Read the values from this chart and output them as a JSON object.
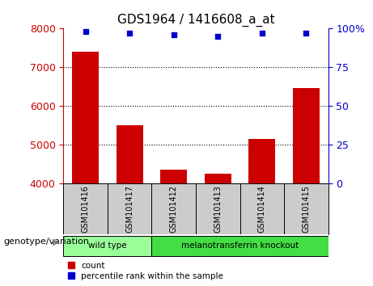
{
  "title": "GDS1964 / 1416608_a_at",
  "samples": [
    "GSM101416",
    "GSM101417",
    "GSM101412",
    "GSM101413",
    "GSM101414",
    "GSM101415"
  ],
  "bar_values": [
    7400,
    5500,
    4350,
    4250,
    5150,
    6450
  ],
  "percentile_values": [
    98,
    97,
    96,
    95,
    97,
    97
  ],
  "bar_color": "#cc0000",
  "percentile_color": "#0000cc",
  "ylim_left": [
    4000,
    8000
  ],
  "ylim_right": [
    0,
    100
  ],
  "yticks_left": [
    4000,
    5000,
    6000,
    7000,
    8000
  ],
  "yticks_right": [
    0,
    25,
    50,
    75,
    100
  ],
  "ytick_labels_right": [
    "0",
    "25",
    "50",
    "75",
    "100%"
  ],
  "grid_values": [
    5000,
    6000,
    7000
  ],
  "groups": [
    {
      "label": "wild type",
      "indices": [
        0,
        1
      ],
      "color": "#99ff99"
    },
    {
      "label": "melanotransferrin knockout",
      "indices": [
        2,
        3,
        4,
        5
      ],
      "color": "#44dd44"
    }
  ],
  "group_label": "genotype/variation",
  "legend_count_label": "count",
  "legend_percentile_label": "percentile rank within the sample",
  "bg_color": "#ffffff",
  "tick_color_left": "#cc0000",
  "tick_color_right": "#0000cc",
  "xlabel_area_color": "#cccccc",
  "bar_width": 0.6
}
